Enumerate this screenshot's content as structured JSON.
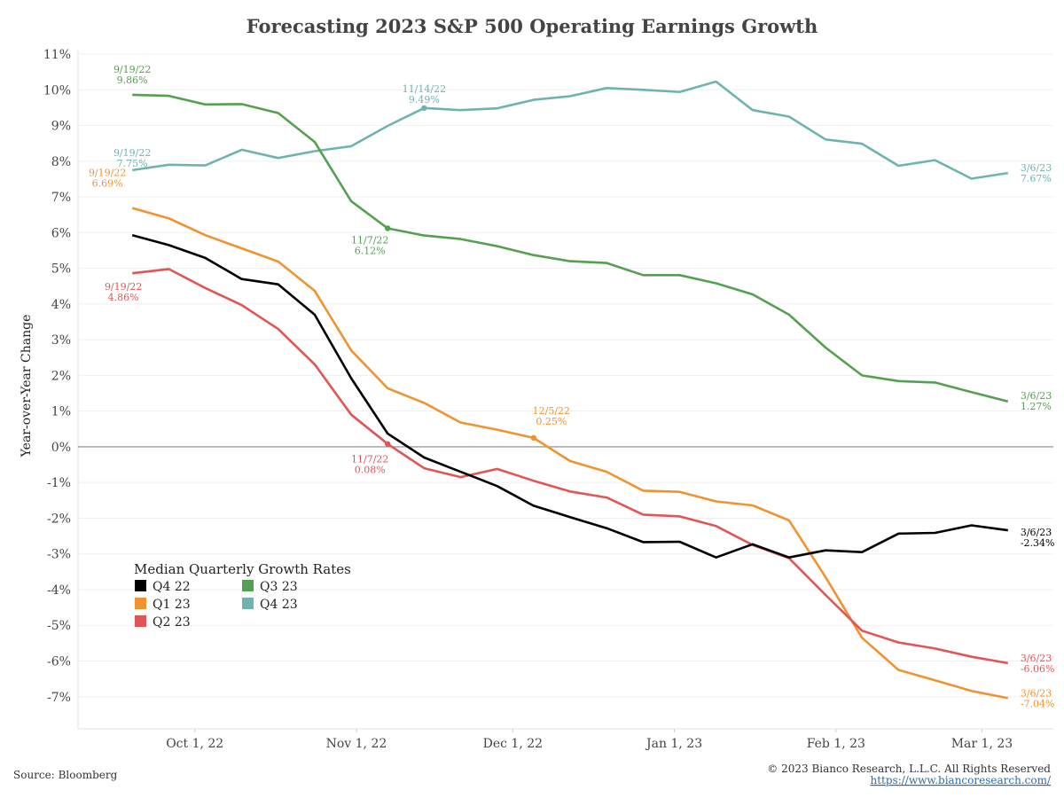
{
  "chart_data": {
    "type": "line",
    "title": "Forecasting 2023 S&P 500 Operating Earnings Growth",
    "ylabel": "Year-over-Year Change",
    "xlabel": "",
    "ylim": [
      -8,
      11
    ],
    "y_ticks": [
      "11%",
      "10%",
      "9%",
      "8%",
      "7%",
      "6%",
      "5%",
      "4%",
      "3%",
      "2%",
      "1%",
      "0%",
      "-1%",
      "-2%",
      "-3%",
      "-4%",
      "-5%",
      "-6%",
      "-7%"
    ],
    "y_tick_values": [
      11,
      10,
      9,
      8,
      7,
      6,
      5,
      4,
      3,
      2,
      1,
      0,
      -1,
      -2,
      -3,
      -4,
      -5,
      -6,
      -7
    ],
    "x_ticks": [
      {
        "label": "Oct 1, 22",
        "date": "2022-10-01"
      },
      {
        "label": "Nov 1, 22",
        "date": "2022-11-01"
      },
      {
        "label": "Dec 1, 22",
        "date": "2022-12-01"
      },
      {
        "label": "Jan 1, 23",
        "date": "2023-01-01"
      },
      {
        "label": "Feb 1, 23",
        "date": "2023-02-01"
      },
      {
        "label": "Mar 1, 23",
        "date": "2023-03-01"
      }
    ],
    "xlim": [
      "2022-09-12",
      "2023-03-13"
    ],
    "grid": true,
    "zero_line": true,
    "x": [
      "2022-09-19",
      "2022-09-26",
      "2022-10-03",
      "2022-10-10",
      "2022-10-17",
      "2022-10-24",
      "2022-10-31",
      "2022-11-07",
      "2022-11-14",
      "2022-11-21",
      "2022-11-28",
      "2022-12-05",
      "2022-12-12",
      "2022-12-19",
      "2022-12-26",
      "2023-01-02",
      "2023-01-09",
      "2023-01-16",
      "2023-01-23",
      "2023-01-30",
      "2023-02-06",
      "2023-02-13",
      "2023-02-20",
      "2023-02-27",
      "2023-03-06"
    ],
    "legend": {
      "title": "Median Quarterly Growth Rates",
      "position": "bottom-left"
    },
    "series": [
      {
        "name": "Q4 22",
        "color": "#000000",
        "values": [
          5.93,
          5.65,
          5.29,
          4.7,
          4.55,
          3.7,
          1.92,
          0.37,
          -0.3,
          -0.7,
          -1.1,
          -1.65,
          -1.97,
          -2.28,
          -2.67,
          -2.66,
          -3.1,
          -2.73,
          -3.1,
          -2.9,
          -2.95,
          -2.43,
          -2.41,
          -2.2,
          -2.34
        ],
        "labels": [
          {
            "i": 24,
            "date": "3/6/23",
            "value": "-2.34%",
            "color": "#000000"
          }
        ]
      },
      {
        "name": "Q1 23",
        "color": "#f0922e",
        "values": [
          6.69,
          6.4,
          5.93,
          5.56,
          5.19,
          4.37,
          2.7,
          1.64,
          1.23,
          0.68,
          0.48,
          0.25,
          -0.4,
          -0.7,
          -1.23,
          -1.26,
          -1.53,
          -1.64,
          -2.06,
          -3.65,
          -5.35,
          -6.25,
          -6.54,
          -6.84,
          -7.04
        ],
        "labels": [
          {
            "i": 0,
            "date": "9/19/22",
            "value": "6.69%"
          },
          {
            "i": 11,
            "date": "12/5/22",
            "value": "0.25%"
          },
          {
            "i": 24,
            "date": "3/6/23",
            "value": "-7.04%"
          }
        ]
      },
      {
        "name": "Q2 23",
        "color": "#e05555",
        "values": [
          4.86,
          4.98,
          4.45,
          3.97,
          3.3,
          2.31,
          0.9,
          0.08,
          -0.6,
          -0.85,
          -0.62,
          -0.95,
          -1.25,
          -1.42,
          -1.9,
          -1.95,
          -2.22,
          -2.75,
          -3.12,
          -4.15,
          -5.15,
          -5.48,
          -5.65,
          -5.88,
          -6.06
        ],
        "labels": [
          {
            "i": 0,
            "date": "9/19/22",
            "value": "4.86%"
          },
          {
            "i": 7,
            "date": "11/7/22",
            "value": "0.08%"
          },
          {
            "i": 24,
            "date": "3/6/23",
            "value": "-6.06%"
          }
        ]
      },
      {
        "name": "Q3 23",
        "color": "#55a050",
        "values": [
          9.86,
          9.83,
          9.59,
          9.6,
          9.35,
          8.54,
          6.88,
          6.12,
          5.92,
          5.82,
          5.62,
          5.37,
          5.2,
          5.15,
          4.81,
          4.81,
          4.58,
          4.27,
          3.7,
          2.78,
          2.0,
          1.84,
          1.8,
          1.53,
          1.27
        ],
        "labels": [
          {
            "i": 0,
            "date": "9/19/22",
            "value": "9.86%"
          },
          {
            "i": 7,
            "date": "11/7/22",
            "value": "6.12%"
          },
          {
            "i": 24,
            "date": "3/6/23",
            "value": "1.27%"
          }
        ]
      },
      {
        "name": "Q4 23",
        "color": "#6fb3b0",
        "values": [
          7.75,
          7.9,
          7.88,
          8.32,
          8.09,
          8.28,
          8.42,
          8.99,
          9.49,
          9.43,
          9.48,
          9.72,
          9.82,
          10.05,
          10.0,
          9.94,
          10.23,
          9.43,
          9.25,
          8.61,
          8.49,
          7.87,
          8.03,
          7.51,
          7.67
        ],
        "labels": [
          {
            "i": 0,
            "date": "9/19/22",
            "value": "7.75%"
          },
          {
            "i": 8,
            "date": "11/14/22",
            "value": "9.49%"
          },
          {
            "i": 24,
            "date": "3/6/23",
            "value": "7.67%"
          }
        ]
      }
    ]
  },
  "footer": {
    "source": "Source: Bloomberg",
    "copyright": "© 2023 Bianco Research, L.L.C. All Rights Reserved",
    "url": "https://www.biancoresearch.com/"
  }
}
